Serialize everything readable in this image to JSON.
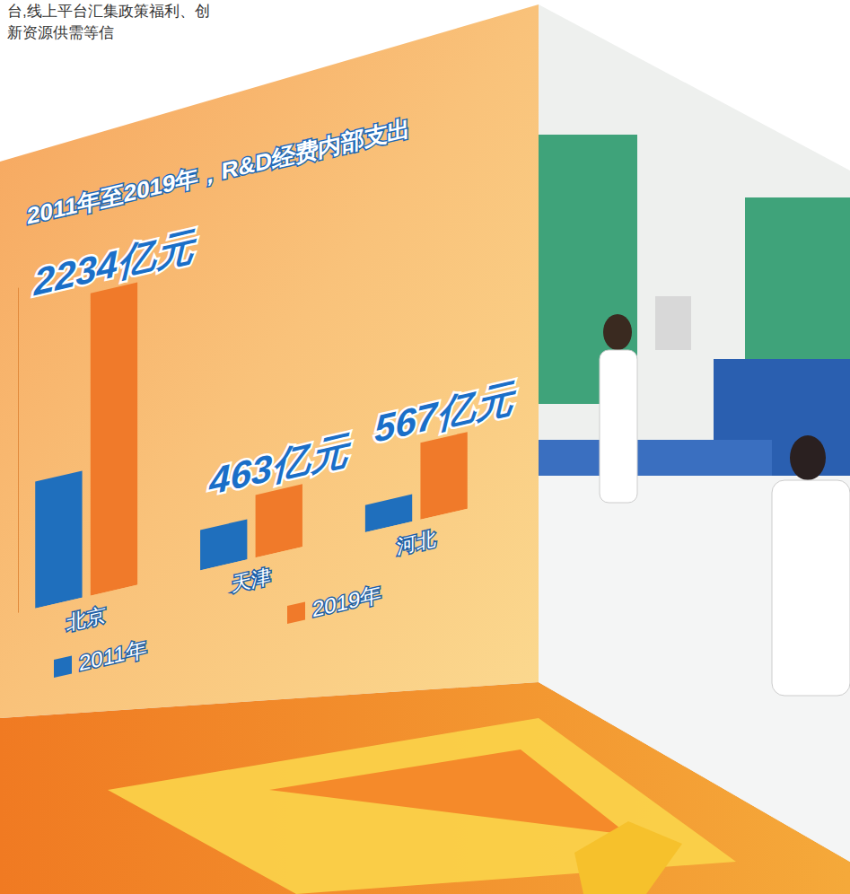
{
  "chart_data": {
    "type": "bar",
    "title": "2011年至2019年，R&D经费内部支出",
    "categories": [
      "北京",
      "天津",
      "河北"
    ],
    "series": [
      {
        "name": "2011年",
        "color": "#1f6fbd",
        "values": [
          937,
          298,
          201
        ]
      },
      {
        "name": "2019年",
        "color": "#f07a2a",
        "values": [
          2234,
          463,
          567
        ],
        "data_labels": true,
        "value_labels": [
          "2234亿元",
          "463亿元",
          "567亿元"
        ]
      }
    ],
    "ylim": [
      0,
      2400
    ],
    "tick_labels": false,
    "legend": "bottom",
    "annotations": [
      "台,线上平台汇集政策福利、创",
      "新资源供需等信"
    ]
  }
}
